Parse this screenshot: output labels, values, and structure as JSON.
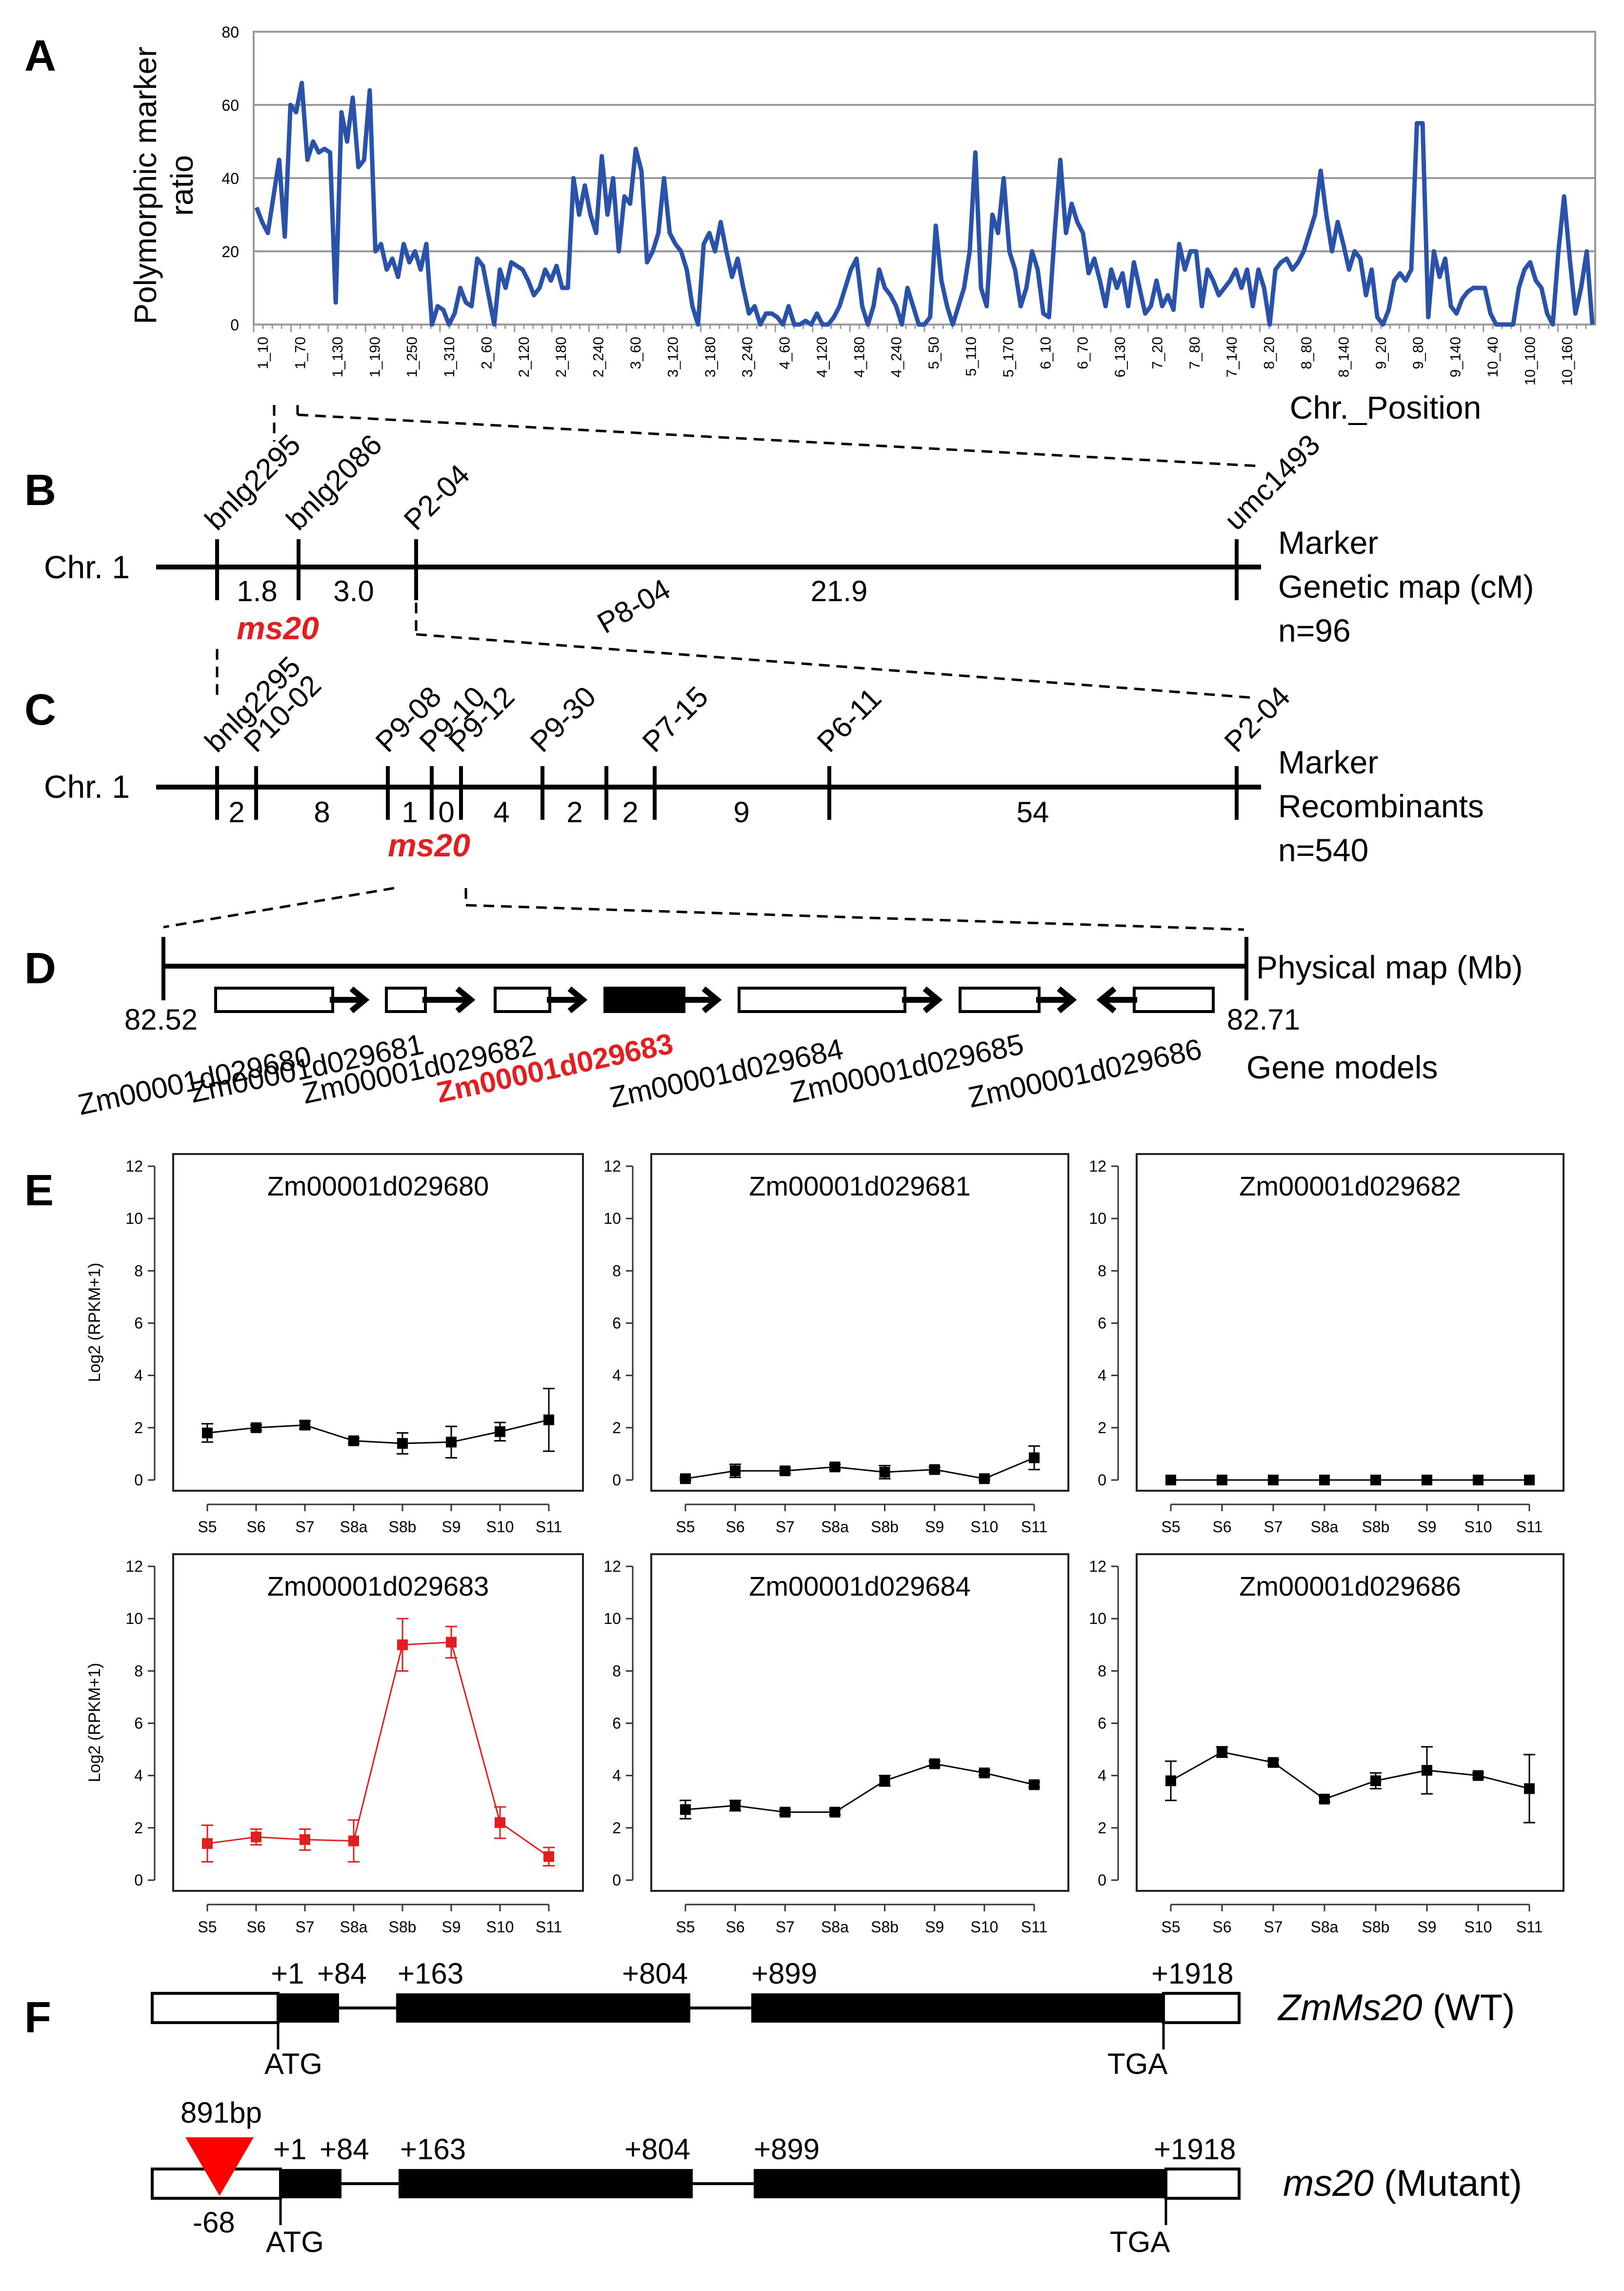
{
  "panels": {
    "a": "A",
    "b": "B",
    "c": "C",
    "d": "D",
    "e": "E",
    "f": "F"
  },
  "chart_data": [
    {
      "type": "line",
      "panel": "A",
      "ylabel": "Polymorphic marker ratio",
      "xlabel": "Chr._Position",
      "ylim": [
        0,
        80
      ],
      "yticks": [
        0,
        20,
        40,
        60,
        80
      ],
      "grid": true,
      "tick_labels": [
        "1_10",
        "1_70",
        "1_130",
        "1_190",
        "1_250",
        "1_310",
        "2_60",
        "2_120",
        "2_180",
        "2_240",
        "3_60",
        "3_120",
        "3_180",
        "3_240",
        "4_60",
        "4_120",
        "4_180",
        "4_240",
        "5_50",
        "5_110",
        "5_170",
        "6_10",
        "6_70",
        "6_130",
        "7_20",
        "7_80",
        "7_140",
        "8_20",
        "8_80",
        "8_140",
        "9_20",
        "9_80",
        "9_140",
        "10_40",
        "10_100",
        "10_160"
      ],
      "values": [
        32,
        28,
        25,
        35,
        45,
        24,
        60,
        58,
        66,
        45,
        50,
        47,
        48,
        47,
        6,
        58,
        50,
        62,
        43,
        45,
        64,
        20,
        22,
        15,
        18,
        13,
        22,
        17,
        20,
        15,
        22,
        0,
        5,
        4,
        0,
        3,
        10,
        6,
        5,
        18,
        16,
        8,
        0,
        15,
        10,
        17,
        16,
        15,
        12,
        8,
        10,
        15,
        12,
        16,
        10,
        10,
        40,
        30,
        38,
        30,
        25,
        46,
        30,
        40,
        20,
        35,
        33,
        48,
        42,
        17,
        20,
        25,
        40,
        25,
        22,
        20,
        15,
        5,
        0,
        22,
        25,
        20,
        28,
        20,
        13,
        18,
        10,
        3,
        5,
        0,
        3,
        3,
        2,
        0,
        5,
        0,
        0,
        1,
        0,
        3,
        0,
        0,
        2,
        5,
        10,
        15,
        18,
        5,
        0,
        5,
        15,
        10,
        8,
        5,
        0,
        10,
        5,
        0,
        0,
        2,
        27,
        12,
        5,
        0,
        5,
        10,
        20,
        47,
        10,
        5,
        30,
        25,
        40,
        20,
        15,
        5,
        10,
        20,
        15,
        3,
        2,
        25,
        45,
        25,
        33,
        28,
        25,
        14,
        18,
        12,
        5,
        15,
        10,
        14,
        5,
        17,
        10,
        3,
        5,
        12,
        5,
        8,
        4,
        22,
        15,
        20,
        20,
        5,
        15,
        12,
        8,
        10,
        12,
        15,
        10,
        15,
        5,
        15,
        10,
        0,
        15,
        17,
        18,
        15,
        17,
        20,
        25,
        30,
        42,
        30,
        20,
        28,
        22,
        15,
        20,
        18,
        8,
        15,
        2,
        0,
        4,
        12,
        14,
        12,
        15,
        55,
        55,
        2,
        20,
        13,
        18,
        5,
        3,
        7,
        9,
        10,
        10,
        10,
        3,
        0,
        0,
        0,
        0,
        10,
        15,
        17,
        12,
        10,
        3,
        0,
        20,
        35,
        18,
        3,
        10,
        20,
        0
      ],
      "line_color": "#2a52a8"
    },
    {
      "type": "line",
      "panel": "E",
      "title": "Zm00001d029680",
      "ylabel": "Log2 (RPKM+1)",
      "ylim": [
        0,
        12
      ],
      "categories": [
        "S5",
        "S6",
        "S7",
        "S8a",
        "S8b",
        "S9",
        "S10",
        "S11"
      ],
      "values": [
        1.8,
        2.0,
        2.1,
        1.5,
        1.4,
        1.45,
        1.85,
        2.3
      ],
      "errors": [
        0.35,
        0.1,
        0.15,
        0.1,
        0.4,
        0.6,
        0.35,
        1.2
      ],
      "color": "#000000"
    },
    {
      "type": "line",
      "panel": "E",
      "title": "Zm00001d029681",
      "ylabel": "",
      "ylim": [
        0,
        12
      ],
      "categories": [
        "S5",
        "S6",
        "S7",
        "S8a",
        "S8b",
        "S9",
        "S10",
        "S11"
      ],
      "values": [
        0.05,
        0.35,
        0.35,
        0.5,
        0.3,
        0.4,
        0.05,
        0.85
      ],
      "errors": [
        0.05,
        0.25,
        0.1,
        0.1,
        0.25,
        0.1,
        0.05,
        0.45
      ],
      "color": "#000000"
    },
    {
      "type": "line",
      "panel": "E",
      "title": "Zm00001d029682",
      "ylabel": "",
      "ylim": [
        0,
        12
      ],
      "categories": [
        "S5",
        "S6",
        "S7",
        "S8a",
        "S8b",
        "S9",
        "S10",
        "S11"
      ],
      "values": [
        0,
        0,
        0,
        0,
        0,
        0,
        0,
        0
      ],
      "errors": [
        0,
        0,
        0,
        0,
        0,
        0,
        0,
        0
      ],
      "color": "#000000"
    },
    {
      "type": "line",
      "panel": "E",
      "title": "Zm00001d029683",
      "ylabel": "Log2 (RPKM+1)",
      "ylim": [
        0,
        12
      ],
      "categories": [
        "S5",
        "S6",
        "S7",
        "S8a",
        "S8b",
        "S9",
        "S10",
        "S11"
      ],
      "values": [
        1.4,
        1.65,
        1.55,
        1.5,
        9.0,
        9.1,
        2.2,
        0.9
      ],
      "errors": [
        0.7,
        0.3,
        0.4,
        0.8,
        1.0,
        0.6,
        0.6,
        0.35
      ],
      "color": "#e02020"
    },
    {
      "type": "line",
      "panel": "E",
      "title": "Zm00001d029684",
      "ylabel": "",
      "ylim": [
        0,
        12
      ],
      "categories": [
        "S5",
        "S6",
        "S7",
        "S8a",
        "S8b",
        "S9",
        "S10",
        "S11"
      ],
      "values": [
        2.7,
        2.85,
        2.6,
        2.6,
        3.8,
        4.45,
        4.1,
        3.65
      ],
      "errors": [
        0.35,
        0.2,
        0.1,
        0.1,
        0.2,
        0.1,
        0.1,
        0.1
      ],
      "color": "#000000"
    },
    {
      "type": "line",
      "panel": "E",
      "title": "Zm00001d029686",
      "ylabel": "",
      "ylim": [
        0,
        12
      ],
      "categories": [
        "S5",
        "S6",
        "S7",
        "S8a",
        "S8b",
        "S9",
        "S10",
        "S11"
      ],
      "values": [
        3.8,
        4.9,
        4.5,
        3.1,
        3.8,
        4.2,
        4.0,
        3.5
      ],
      "errors": [
        0.75,
        0.2,
        0.1,
        0.1,
        0.3,
        0.9,
        0.1,
        1.3
      ],
      "color": "#000000"
    }
  ],
  "panel_b": {
    "chr": "Chr. 1",
    "markers": [
      "bnlg2295",
      "bnlg2086",
      "P2-04",
      "umc1493"
    ],
    "distances": [
      "1.8",
      "3.0",
      "21.9"
    ],
    "extra_marker": "P8-04",
    "gene": "ms20",
    "legend": [
      "Marker",
      "Genetic map (cM)",
      "n=96"
    ]
  },
  "panel_c": {
    "chr": "Chr. 1",
    "markers": [
      "bnlg2295",
      "P10-02",
      "P9-08",
      "P9-10",
      "P9-12",
      "P9-30",
      "P7-15",
      "P6-11",
      "P2-04"
    ],
    "recombinants": [
      "2",
      "8",
      "1",
      "0",
      "4",
      "2",
      "2",
      "9",
      "54"
    ],
    "gene": "ms20",
    "legend": [
      "Marker",
      "Recombinants",
      "n=540"
    ]
  },
  "panel_d": {
    "start": "82.52",
    "end": "82.71",
    "legend": "Physical map (Mb)",
    "genes_label": "Gene models",
    "genes": [
      "Zm00001d029680",
      "Zm00001d029681",
      "Zm00001d029682",
      "Zm00001d029683",
      "Zm00001d029684",
      "Zm00001d029685",
      "Zm00001d029686"
    ]
  },
  "panel_f": {
    "wt": {
      "positions": [
        "+1",
        "+84",
        "+163",
        "+804",
        "+899",
        "+1918"
      ],
      "start_codon": "ATG",
      "stop_codon": "TGA",
      "name": "ZmMs20",
      "suffix": " (WT)"
    },
    "mutant": {
      "insertion": "891bp",
      "insertion_pos": "-68",
      "positions": [
        "+1",
        "+84",
        "+163",
        "+804",
        "+899",
        "+1918"
      ],
      "start_codon": "ATG",
      "stop_codon": "TGA",
      "name": "ms20",
      "suffix": " (Mutant)"
    }
  }
}
